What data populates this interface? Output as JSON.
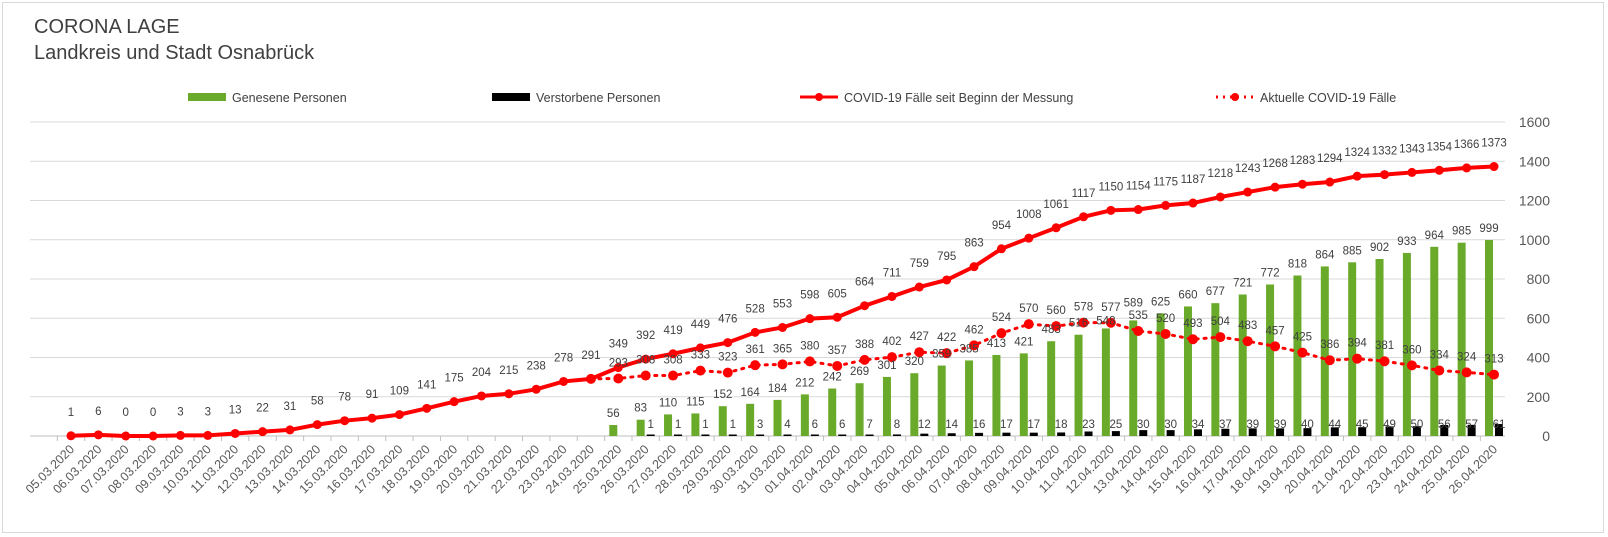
{
  "chart_data": {
    "type": "bar+line",
    "title": "CORONA LAGE",
    "subtitle": "Landkreis und Stadt Osnabrück",
    "legend_position": "top",
    "grid": true,
    "y_axis_side": "right",
    "ylim": [
      0,
      1600
    ],
    "yticks": [
      0,
      200,
      400,
      600,
      800,
      1000,
      1200,
      1400,
      1600
    ],
    "categories": [
      "05.03.2020",
      "06.03.2020",
      "07.03.2020",
      "08.03.2020",
      "09.03.2020",
      "10.03.2020",
      "11.03.2020",
      "12.03.2020",
      "13.03.2020",
      "14.03.2020",
      "15.03.2020",
      "16.03.2020",
      "17.03.2020",
      "18.03.2020",
      "19.03.2020",
      "20.03.2020",
      "21.03.2020",
      "22.03.2020",
      "23.03.2020",
      "24.03.2020",
      "25.03.2020",
      "26.03.2020",
      "27.03.2020",
      "28.03.2020",
      "29.03.2020",
      "30.03.2020",
      "31.03.2020",
      "01.04.2020",
      "02.04.2020",
      "03.04.2020",
      "04.04.2020",
      "05.04.2020",
      "06.04.2020",
      "07.04.2020",
      "08.04.2020",
      "09.04.2020",
      "10.04.2020",
      "11.04.2020",
      "12.04.2020",
      "13.04.2020",
      "14.04.2020",
      "15.04.2020",
      "16.04.2020",
      "17.04.2020",
      "18.04.2020",
      "19.04.2020",
      "20.04.2020",
      "21.04.2020",
      "22.04.2020",
      "23.04.2020",
      "24.04.2020",
      "25.04.2020",
      "26.04.2020"
    ],
    "series": [
      {
        "name": "Genesene Personen",
        "type": "bar",
        "color": "#6aaa2a",
        "values": [
          null,
          null,
          null,
          null,
          null,
          null,
          null,
          null,
          null,
          null,
          null,
          null,
          null,
          null,
          null,
          null,
          null,
          null,
          null,
          null,
          56,
          83,
          110,
          115,
          152,
          164,
          184,
          212,
          242,
          269,
          301,
          320,
          359,
          385,
          413,
          421,
          483,
          516,
          548,
          589,
          625,
          660,
          677,
          721,
          772,
          818,
          864,
          885,
          902,
          933,
          964,
          985,
          999
        ]
      },
      {
        "name": "Verstorbene Personen",
        "type": "bar",
        "color": "#000000",
        "values": [
          null,
          null,
          null,
          null,
          null,
          null,
          null,
          null,
          null,
          null,
          null,
          null,
          null,
          null,
          null,
          null,
          null,
          null,
          null,
          null,
          null,
          1,
          1,
          1,
          1,
          3,
          4,
          6,
          6,
          7,
          8,
          12,
          14,
          16,
          17,
          17,
          18,
          23,
          25,
          30,
          30,
          34,
          37,
          39,
          39,
          40,
          44,
          45,
          49,
          50,
          56,
          57,
          61
        ]
      },
      {
        "name": "COVID-19 Fälle seit Beginn der Messung",
        "type": "line",
        "color": "#ff0000",
        "values": [
          1,
          6,
          0,
          0,
          3,
          3,
          13,
          22,
          31,
          58,
          78,
          91,
          109,
          141,
          175,
          204,
          215,
          238,
          278,
          291,
          349,
          392,
          419,
          449,
          476,
          528,
          553,
          598,
          605,
          664,
          711,
          759,
          795,
          863,
          954,
          1008,
          1061,
          1117,
          1150,
          1154,
          1175,
          1187,
          1218,
          1243,
          1268,
          1283,
          1294,
          1324,
          1332,
          1343,
          1354,
          1366,
          1373
        ]
      },
      {
        "name": "Aktuelle COVID-19 Fälle",
        "type": "line-dotted",
        "color": "#ff0000",
        "values": [
          null,
          null,
          null,
          null,
          null,
          null,
          null,
          null,
          null,
          null,
          null,
          null,
          null,
          null,
          null,
          null,
          null,
          null,
          null,
          291,
          293,
          308,
          308,
          333,
          323,
          361,
          365,
          380,
          357,
          388,
          402,
          427,
          422,
          462,
          524,
          570,
          560,
          578,
          577,
          535,
          520,
          493,
          504,
          483,
          457,
          425,
          386,
          394,
          381,
          360,
          334,
          324,
          313
        ]
      }
    ]
  }
}
